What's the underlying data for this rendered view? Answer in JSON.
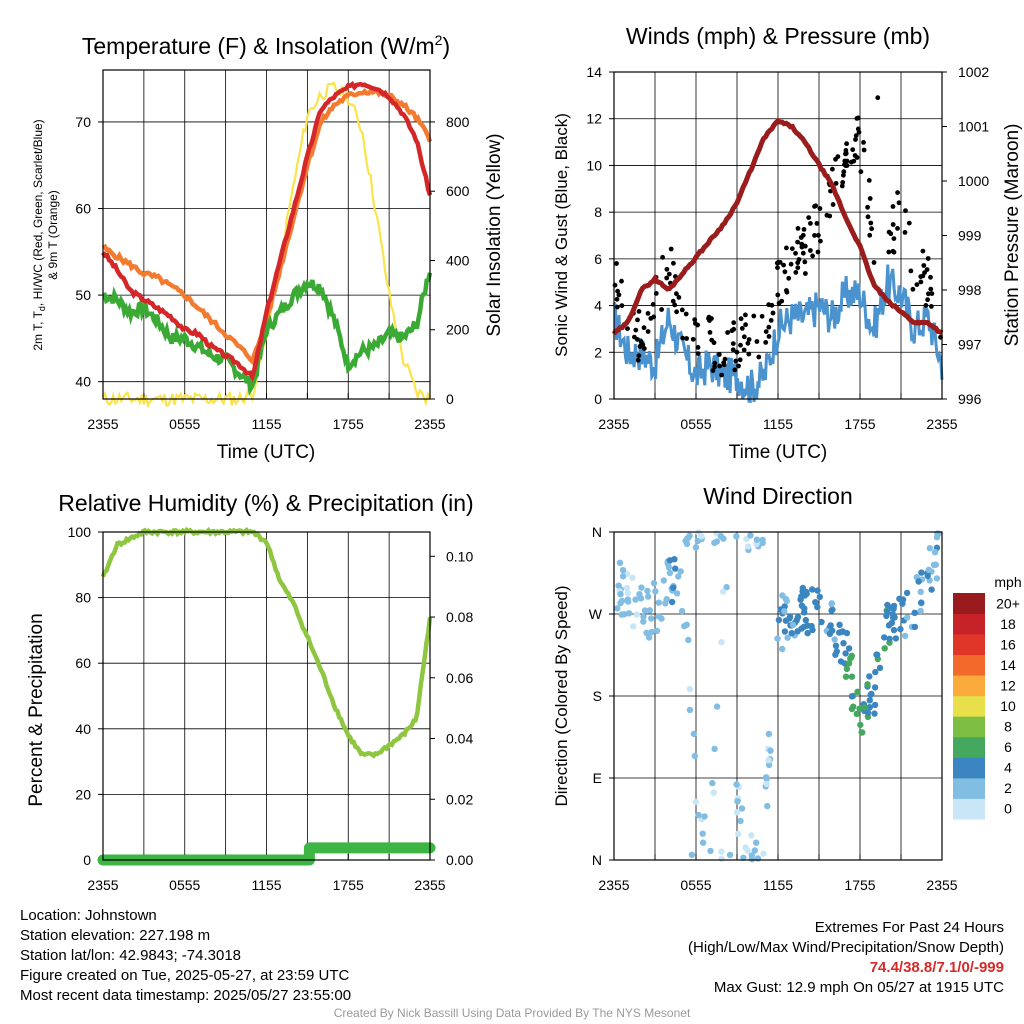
{
  "colors": {
    "temp": "#d4272a",
    "dewpoint": "#3aaa35",
    "windchill": "#cc2222",
    "temp9m": "#f47a2f",
    "insolation": "#fbe34c",
    "wind": "#4b93cf",
    "gust": "#000000",
    "pressure": "#9b1c1c",
    "rh": "#8ec63f",
    "precip": "#3db544"
  },
  "panels": {
    "temp": {
      "title": "Temperature (F) & Insolation (W/m²)",
      "title_main": "Temperature (F) & Insolation (W/m",
      "title_sup": "2",
      "title_close": ")",
      "ylabel_line1": "2m T, T",
      "ylabel_sub": "d",
      "ylabel_line1_rest": ", HI/WC (Red, Green, Scarlet/Blue)",
      "ylabel_line2": "& 9m T (Orange)",
      "ylabel_right": "Solar Insolation (Yellow)",
      "xlabel": "Time (UTC)"
    },
    "wind": {
      "title": "Winds (mph) & Pressure (mb)",
      "ylabel_left": "Sonic Wind & Gust (Blue, Black)",
      "ylabel_right": "Station Pressure (Maroon)",
      "xlabel": "Time (UTC)"
    },
    "rh": {
      "title": "Relative Humidity (%) & Precipitation (in)",
      "ylabel_left": "Percent & Precipitation"
    },
    "dir": {
      "title": "Wind Direction",
      "ylabel_left": "Direction (Colored By Speed)"
    }
  },
  "chart_data": [
    {
      "type": "line",
      "title": "Temperature (F) & Insolation (W/m2)",
      "xlabel": "Time (UTC)",
      "ylabel": "2m T, Td, HI/WC (Red, Green, Scarlet/Blue) & 9m T (Orange)",
      "y2label": "Solar Insolation (Yellow)",
      "x_ticks": [
        "2355",
        "0555",
        "1155",
        "1755",
        "2355"
      ],
      "ylim": [
        38,
        76
      ],
      "y_ticks": [
        40,
        50,
        60,
        70
      ],
      "y2lim": [
        0,
        950
      ],
      "y2_ticks": [
        0,
        200,
        400,
        600,
        800
      ],
      "x_hours": [
        0,
        1,
        2,
        3,
        4,
        5,
        6,
        7,
        8,
        9,
        10,
        11,
        12,
        13,
        14,
        15,
        16,
        17,
        18,
        19,
        20,
        21,
        22,
        23,
        24
      ],
      "series": [
        {
          "name": "2m T",
          "values": [
            55,
            53,
            50.5,
            49.5,
            48.5,
            47.5,
            46,
            45.5,
            44,
            43,
            42,
            40.5,
            48,
            54,
            60,
            66,
            71.5,
            73,
            74,
            74.5,
            74,
            73,
            71,
            68,
            61.5
          ]
        },
        {
          "name": "Td",
          "values": [
            50,
            49.5,
            48,
            48.5,
            47,
            45,
            45,
            44,
            43,
            42.5,
            41,
            39.5,
            46,
            48,
            50,
            51.5,
            51,
            47,
            42,
            43.5,
            44,
            45.5,
            45,
            46.5,
            53
          ]
        },
        {
          "name": "9m T",
          "values": [
            55.5,
            54.5,
            53.5,
            52.5,
            52,
            51,
            50,
            48.5,
            47,
            45.5,
            44,
            42.5,
            47,
            53,
            59,
            65,
            70,
            72,
            73,
            73.5,
            73.5,
            73,
            72,
            70.5,
            68
          ]
        },
        {
          "name": "Solar Insolation",
          "values": [
            0,
            0,
            0,
            0,
            0,
            0,
            0,
            0,
            0,
            0,
            0,
            20,
            180,
            400,
            620,
            820,
            880,
            900,
            870,
            780,
            550,
            300,
            120,
            20,
            0
          ]
        }
      ]
    },
    {
      "type": "line",
      "title": "Winds (mph) & Pressure (mb)",
      "xlabel": "Time (UTC)",
      "ylabel": "Sonic Wind & Gust (Blue, Black)",
      "y2label": "Station Pressure (Maroon)",
      "x_ticks": [
        "2355",
        "0555",
        "1155",
        "1755",
        "2355"
      ],
      "ylim": [
        0,
        14
      ],
      "y_ticks": [
        0,
        2,
        4,
        6,
        8,
        10,
        12,
        14
      ],
      "y2lim": [
        996,
        1002
      ],
      "y2_ticks": [
        996,
        997,
        998,
        999,
        1000,
        1001,
        1002
      ],
      "x_hours": [
        0,
        1,
        2,
        3,
        4,
        5,
        6,
        7,
        8,
        9,
        10,
        11,
        12,
        13,
        14,
        15,
        16,
        17,
        18,
        19,
        20,
        21,
        22,
        23,
        24
      ],
      "series": [
        {
          "name": "Sonic Wind",
          "values": [
            3.5,
            2.0,
            2.0,
            1.5,
            3.5,
            2.0,
            1.0,
            1.5,
            1.0,
            1.0,
            0.5,
            1.0,
            3.0,
            3.5,
            3.5,
            4.0,
            3.5,
            4.5,
            4.5,
            3.0,
            5.0,
            4.5,
            3.0,
            3.5,
            1.5
          ]
        },
        {
          "name": "Gust",
          "values": [
            5.5,
            3.0,
            2.5,
            4.0,
            6.0,
            3.0,
            3.0,
            2.5,
            2.0,
            2.5,
            3.0,
            2.5,
            5.0,
            6.0,
            6.5,
            7.5,
            9.0,
            10.5,
            11.0,
            7.0,
            6.0,
            8.5,
            5.5,
            5.0,
            2.0
          ]
        },
        {
          "name": "Station Pressure",
          "values": [
            997.2,
            997.4,
            998.0,
            998.2,
            998.0,
            998.3,
            998.6,
            998.9,
            999.2,
            999.6,
            1000.2,
            1000.8,
            1001.1,
            1001.0,
            1000.7,
            1000.3,
            999.9,
            999.3,
            998.8,
            998.1,
            997.8,
            997.6,
            997.4,
            997.4,
            997.2
          ]
        }
      ],
      "gust_max": 12.9
    },
    {
      "type": "line",
      "title": "Relative Humidity (%) & Precipitation (in)",
      "ylabel": "Percent & Precipitation",
      "x_ticks": [
        "2355",
        "0555",
        "1155",
        "1755",
        "2355"
      ],
      "ylim": [
        0,
        100
      ],
      "y_ticks": [
        0,
        20,
        40,
        60,
        80,
        100
      ],
      "y2lim": [
        0,
        0.108
      ],
      "y2_ticks": [
        "0.00",
        "0.02",
        "0.04",
        "0.06",
        "0.08",
        "0.10"
      ],
      "x_hours": [
        0,
        1,
        2,
        3,
        4,
        5,
        6,
        7,
        8,
        9,
        10,
        11,
        12,
        13,
        14,
        15,
        16,
        17,
        18,
        19,
        20,
        21,
        22,
        23,
        24
      ],
      "series": [
        {
          "name": "Relative Humidity",
          "values": [
            86,
            96,
            98,
            100,
            100,
            100,
            100,
            100,
            100,
            100,
            100,
            100,
            97,
            85,
            78,
            68,
            58,
            47,
            38,
            32,
            32,
            35,
            38,
            43,
            74
          ]
        },
        {
          "name": "Precipitation",
          "values": [
            0,
            0,
            0,
            0,
            0,
            0,
            0,
            0,
            0,
            0,
            0,
            0,
            0,
            0,
            0,
            0,
            0.004,
            0.004,
            0.004,
            0.004,
            0.004,
            0.004,
            0.004,
            0.004,
            0.004
          ]
        }
      ]
    },
    {
      "type": "scatter",
      "title": "Wind Direction",
      "ylabel": "Direction (Colored By Speed)",
      "x_ticks": [
        "2355",
        "0555",
        "1155",
        "1755",
        "2355"
      ],
      "y_ticks": [
        "N",
        "E",
        "S",
        "W",
        "N"
      ],
      "ylim": [
        0,
        360
      ],
      "colorbar_title": "mph",
      "colorbar_labels": [
        "0",
        "2",
        "4",
        "6",
        "8",
        "10",
        "12",
        "14",
        "16",
        "18",
        "20+"
      ],
      "colorbar_colors": [
        "#c9e6f6",
        "#82bde3",
        "#3b86c0",
        "#44a85f",
        "#7dbf42",
        "#e7e04b",
        "#fbaa3c",
        "#f26a2b",
        "#e0362a",
        "#c62228",
        "#991b1e"
      ],
      "x_hours": [
        0,
        1,
        2,
        3,
        4,
        5,
        6,
        7,
        8,
        9,
        10,
        11,
        12,
        13,
        14,
        15,
        16,
        17,
        18,
        19,
        20,
        21,
        22,
        23,
        24
      ],
      "series": [
        {
          "name": "Direction",
          "values": [
            300,
            290,
            270,
            280,
            305,
            290,
            50,
            40,
            330,
            60,
            20,
            40,
            260,
            265,
            270,
            275,
            265,
            230,
            160,
            175,
            250,
            260,
            280,
            300,
            340
          ]
        },
        {
          "name": "Speed",
          "values": [
            2,
            1,
            2,
            2,
            3,
            2,
            1,
            2,
            1,
            1,
            1,
            1,
            3,
            3,
            4,
            4,
            3,
            5,
            6,
            4,
            5,
            4,
            3,
            3,
            2
          ]
        }
      ]
    }
  ],
  "info": {
    "location": "Location: Johnstown",
    "elevation": "Station elevation: 227.198 m",
    "latlon": "Station lat/lon: 42.9843; -74.3018",
    "created": "Figure created on Tue, 2025-05-27, at 23:59 UTC",
    "recent": "Most recent data timestamp: 2025/05/27 23:55:00",
    "extremes_title": "Extremes For Past 24 Hours",
    "extremes_legend": "(High/Low/Max Wind/Precipitation/Snow Depth)",
    "extremes_values": "74.4/38.8/7.1/0/-999",
    "max_gust": "Max Gust: 12.9 mph On 05/27 at 1915 UTC",
    "credit": "Created By Nick Bassill Using Data Provided By The NYS Mesonet"
  }
}
